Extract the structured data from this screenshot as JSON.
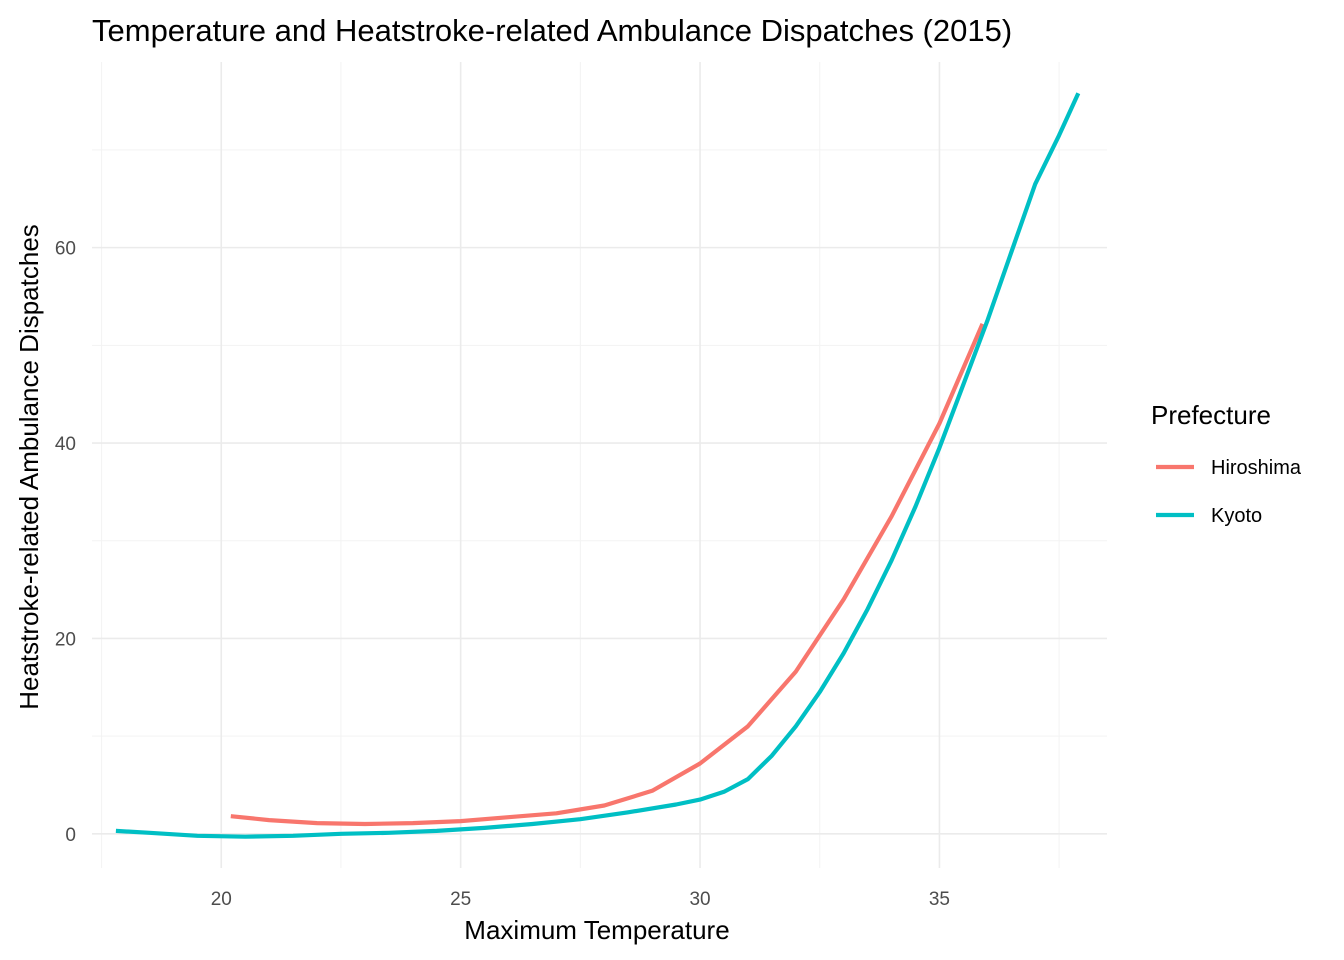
{
  "chart_data": {
    "type": "line",
    "title": "Temperature and Heatstroke-related Ambulance Dispatches (2015)",
    "xlabel": "Maximum Temperature",
    "ylabel": "Heatstroke-related Ambulance Dispatches",
    "xlim": [
      17.3,
      38.5
    ],
    "ylim": [
      -3.5,
      79
    ],
    "x_ticks": [
      20,
      25,
      30,
      35
    ],
    "y_ticks": [
      0,
      20,
      40,
      60
    ],
    "grid": true,
    "legend": {
      "title": "Prefecture",
      "position": "right"
    },
    "series": [
      {
        "name": "Hiroshima",
        "color": "#F8766D",
        "points": [
          [
            20.2,
            1.8
          ],
          [
            21.0,
            1.4
          ],
          [
            22.0,
            1.1
          ],
          [
            23.0,
            1.0
          ],
          [
            24.0,
            1.1
          ],
          [
            25.0,
            1.3
          ],
          [
            26.0,
            1.7
          ],
          [
            27.0,
            2.1
          ],
          [
            28.0,
            2.9
          ],
          [
            29.0,
            4.4
          ],
          [
            30.0,
            7.2
          ],
          [
            31.0,
            11.0
          ],
          [
            32.0,
            16.6
          ],
          [
            33.0,
            24.0
          ],
          [
            34.0,
            32.5
          ],
          [
            35.0,
            42.0
          ],
          [
            35.9,
            52.2
          ]
        ]
      },
      {
        "name": "Kyoto",
        "color": "#00BFC4",
        "points": [
          [
            17.8,
            0.3
          ],
          [
            18.5,
            0.1
          ],
          [
            19.5,
            -0.2
          ],
          [
            20.5,
            -0.3
          ],
          [
            21.5,
            -0.2
          ],
          [
            22.5,
            0.0
          ],
          [
            23.5,
            0.1
          ],
          [
            24.5,
            0.3
          ],
          [
            25.5,
            0.6
          ],
          [
            26.5,
            1.0
          ],
          [
            27.5,
            1.5
          ],
          [
            28.5,
            2.2
          ],
          [
            29.5,
            3.0
          ],
          [
            30.0,
            3.5
          ],
          [
            30.5,
            4.3
          ],
          [
            31.0,
            5.6
          ],
          [
            31.5,
            8.0
          ],
          [
            32.0,
            11.0
          ],
          [
            32.5,
            14.5
          ],
          [
            33.0,
            18.5
          ],
          [
            33.5,
            23.0
          ],
          [
            34.0,
            28.0
          ],
          [
            34.5,
            33.5
          ],
          [
            35.0,
            39.5
          ],
          [
            35.5,
            46.0
          ],
          [
            36.0,
            52.5
          ],
          [
            36.5,
            59.5
          ],
          [
            37.0,
            66.5
          ],
          [
            37.5,
            71.5
          ],
          [
            37.9,
            75.8
          ]
        ]
      }
    ]
  }
}
